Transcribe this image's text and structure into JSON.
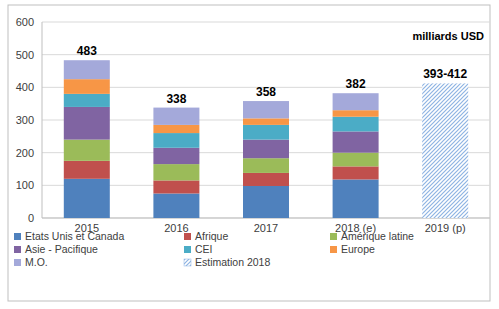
{
  "chart_data": {
    "type": "bar",
    "stacked": true,
    "subtitle": "milliards USD",
    "categories": [
      "2015",
      "2016",
      "2017",
      "2018 (e)",
      "2019 (p)"
    ],
    "series": [
      {
        "name": "Etats Unis et Canada",
        "color": "#4f81bd",
        "values": [
          120,
          75,
          98,
          118,
          null
        ]
      },
      {
        "name": "Afrique",
        "color": "#c0504d",
        "values": [
          55,
          40,
          40,
          40,
          null
        ]
      },
      {
        "name": "Amérique latine",
        "color": "#9bbb59",
        "values": [
          65,
          50,
          45,
          42,
          null
        ]
      },
      {
        "name": "Asie - Pacifique",
        "color": "#8064a2",
        "values": [
          100,
          50,
          57,
          65,
          null
        ]
      },
      {
        "name": "CEI",
        "color": "#4bacc6",
        "values": [
          40,
          45,
          45,
          45,
          null
        ]
      },
      {
        "name": "Europe",
        "color": "#f79646",
        "values": [
          45,
          25,
          20,
          20,
          null
        ]
      },
      {
        "name": "M.O.",
        "color": "#a4a9da",
        "values": [
          58,
          53,
          53,
          52,
          null
        ]
      },
      {
        "name": "Estimation 2018",
        "color": "#8eb4e3",
        "marker": "hatch",
        "values": [
          null,
          null,
          null,
          null,
          412
        ]
      }
    ],
    "annotations": [
      "483",
      "338",
      "358",
      "382",
      "393-412"
    ],
    "ylim": [
      0,
      600
    ],
    "yticks": [
      0,
      100,
      200,
      300,
      400,
      500,
      600
    ],
    "grid": true,
    "legend": "bottom"
  }
}
